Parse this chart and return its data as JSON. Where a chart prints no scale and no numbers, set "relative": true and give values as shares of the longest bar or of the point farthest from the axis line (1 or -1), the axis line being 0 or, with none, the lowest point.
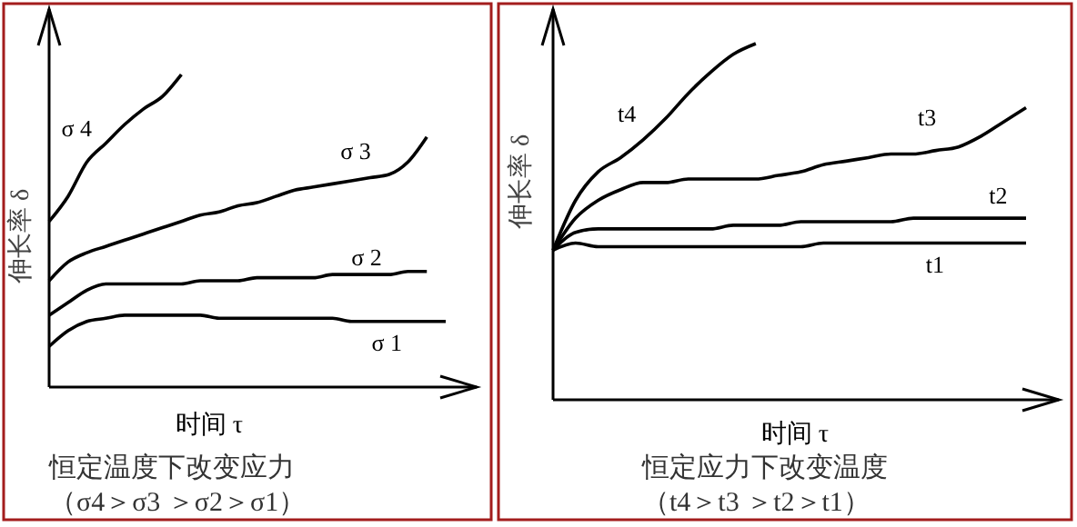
{
  "chart_data": [
    {
      "type": "line",
      "relative": true,
      "xlabel": "时间 τ",
      "ylabel": "伸长率 δ",
      "marker": "none",
      "line_style": "solid",
      "categories": [
        null,
        null,
        null,
        null,
        null,
        null,
        null,
        null,
        null,
        null,
        null,
        null,
        null,
        null,
        null,
        null,
        null,
        null,
        null,
        null,
        null,
        null
      ],
      "annotations": [
        "恒定温度下改变应力",
        "（σ4＞σ3 ＞σ2＞σ1）"
      ],
      "series": [
        {
          "name": "σ 4",
          "color": "#000000",
          "values": [
            0.53,
            0.61,
            0.72,
            0.78,
            0.84,
            0.89,
            0.93,
            1.0,
            null,
            null,
            null,
            null,
            null,
            null,
            null,
            null,
            null,
            null,
            null,
            null,
            null,
            null
          ]
        },
        {
          "name": "σ 3",
          "color": "#000000",
          "values": [
            0.34,
            0.4,
            0.43,
            0.45,
            0.47,
            0.49,
            0.51,
            0.53,
            0.55,
            0.56,
            0.58,
            0.59,
            0.61,
            0.63,
            0.64,
            0.65,
            0.66,
            0.67,
            0.68,
            0.72,
            0.8,
            null
          ]
        },
        {
          "name": "σ 2",
          "color": "#000000",
          "values": [
            0.23,
            0.27,
            0.31,
            0.33,
            0.33,
            0.33,
            0.33,
            0.33,
            0.34,
            0.34,
            0.34,
            0.35,
            0.35,
            0.35,
            0.35,
            0.36,
            0.36,
            0.36,
            0.36,
            0.37,
            0.37,
            null
          ]
        },
        {
          "name": "σ 1",
          "color": "#000000",
          "values": [
            0.13,
            0.18,
            0.21,
            0.22,
            0.23,
            0.23,
            0.23,
            0.23,
            0.23,
            0.22,
            0.22,
            0.22,
            0.22,
            0.22,
            0.22,
            0.22,
            0.21,
            0.21,
            0.21,
            0.21,
            0.21,
            0.21
          ]
        }
      ]
    },
    {
      "type": "line",
      "relative": true,
      "xlabel": "时间 τ",
      "ylabel": "伸长率 δ",
      "marker": "none",
      "line_style": "solid",
      "categories": [
        null,
        null,
        null,
        null,
        null,
        null,
        null,
        null,
        null,
        null,
        null,
        null,
        null,
        null,
        null,
        null,
        null,
        null,
        null,
        null,
        null,
        null
      ],
      "annotations": [
        "恒定应力下改变温度",
        "（t4＞t3 ＞t2＞t1）"
      ],
      "series": [
        {
          "name": "t4",
          "color": "#000000",
          "values": [
            0.42,
            0.56,
            0.64,
            0.68,
            0.73,
            0.79,
            0.86,
            0.92,
            0.97,
            1.0,
            null,
            null,
            null,
            null,
            null,
            null,
            null,
            null,
            null,
            null,
            null,
            null
          ]
        },
        {
          "name": "t3",
          "color": "#000000",
          "values": [
            0.42,
            0.51,
            0.56,
            0.59,
            0.61,
            0.61,
            0.62,
            0.62,
            0.62,
            0.62,
            0.63,
            0.64,
            0.66,
            0.67,
            0.68,
            0.69,
            0.69,
            0.7,
            0.71,
            0.74,
            0.78,
            0.82
          ]
        },
        {
          "name": "t2",
          "color": "#000000",
          "values": [
            0.42,
            0.47,
            0.48,
            0.48,
            0.48,
            0.48,
            0.48,
            0.48,
            0.49,
            0.49,
            0.49,
            0.5,
            0.5,
            0.5,
            0.5,
            0.5,
            0.51,
            0.51,
            0.51,
            0.51,
            0.51,
            0.51
          ]
        },
        {
          "name": "t1",
          "color": "#000000",
          "values": [
            0.42,
            0.44,
            0.43,
            0.43,
            0.43,
            0.43,
            0.43,
            0.43,
            0.43,
            0.43,
            0.43,
            0.43,
            0.44,
            0.44,
            0.44,
            0.44,
            0.44,
            0.44,
            0.44,
            0.44,
            0.44,
            0.44
          ]
        }
      ]
    }
  ]
}
